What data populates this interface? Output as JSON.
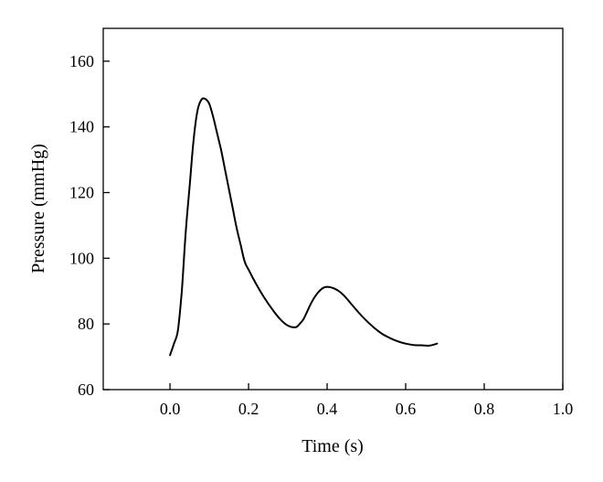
{
  "chart_data": {
    "type": "line",
    "title": "",
    "xlabel": "Time (s)",
    "ylabel": "Pressure (mmHg)",
    "xlim": [
      -0.17,
      1.0
    ],
    "ylim": [
      60,
      170
    ],
    "xticks": [
      0.0,
      0.2,
      0.4,
      0.6,
      0.8,
      1.0
    ],
    "xtick_labels": [
      "0.0",
      "0.2",
      "0.4",
      "0.6",
      "0.8",
      "1.0"
    ],
    "yticks": [
      60,
      80,
      100,
      120,
      140,
      160
    ],
    "ytick_labels": [
      "60",
      "80",
      "100",
      "120",
      "140",
      "160"
    ],
    "grid": false,
    "legend": "none",
    "line_color": "#000000",
    "series": [
      {
        "x": [
          0.0,
          0.01,
          0.02,
          0.03,
          0.04,
          0.05,
          0.06,
          0.07,
          0.08,
          0.09,
          0.1,
          0.11,
          0.12,
          0.13,
          0.14,
          0.15,
          0.16,
          0.17,
          0.18,
          0.19,
          0.2,
          0.22,
          0.24,
          0.26,
          0.28,
          0.3,
          0.32,
          0.33,
          0.34,
          0.35,
          0.36,
          0.37,
          0.38,
          0.39,
          0.4,
          0.41,
          0.42,
          0.43,
          0.44,
          0.45,
          0.46,
          0.48,
          0.5,
          0.52,
          0.54,
          0.56,
          0.58,
          0.6,
          0.62,
          0.64,
          0.66,
          0.68
        ],
        "values": [
          70.5,
          74,
          78,
          90,
          108,
          122,
          136,
          145,
          148.3,
          148.5,
          147,
          143,
          138,
          133,
          127,
          121,
          115,
          109,
          104,
          99,
          96.5,
          92,
          88,
          84.5,
          81.5,
          79.5,
          79,
          80,
          81.5,
          84,
          86.5,
          88.5,
          90,
          91,
          91.3,
          91.1,
          90.7,
          90,
          89,
          87.7,
          86.3,
          83.5,
          81,
          78.8,
          77,
          75.7,
          74.7,
          74,
          73.6,
          73.5,
          73.4,
          74
        ]
      }
    ]
  }
}
